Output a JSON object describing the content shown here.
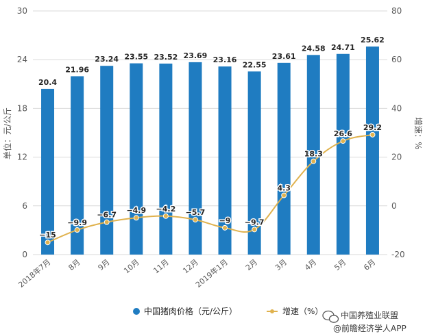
{
  "chart_data": {
    "type": "bar+line",
    "categories": [
      "2018年7月",
      "8月",
      "9月",
      "10月",
      "11月",
      "12月",
      "2019年1月",
      "2月",
      "3月",
      "4月",
      "5月",
      "6月"
    ],
    "series": [
      {
        "name": "中国猪肉价格（元/公斤）",
        "type": "bar",
        "axis": "left",
        "color": "#1f7cc1",
        "values": [
          20.4,
          21.96,
          23.24,
          23.55,
          23.52,
          23.69,
          23.16,
          22.55,
          23.61,
          24.58,
          24.71,
          25.62
        ],
        "labels": [
          "20.4",
          "21.96",
          "23.24",
          "23.55",
          "23.52",
          "23.69",
          "23.16",
          "22.55",
          "23.61",
          "24.58",
          "24.71",
          "25.62"
        ]
      },
      {
        "name": "增速（%）",
        "type": "line",
        "axis": "right",
        "color": "#e0b24e",
        "values": [
          -15,
          -9.9,
          -6.7,
          -4.9,
          -4.2,
          -5.7,
          -9,
          -9.7,
          4.3,
          18.3,
          26.6,
          29.2
        ],
        "labels": [
          "−15",
          "−9.9",
          "−6.7",
          "−4.9",
          "−4.2",
          "−5.7",
          "−9",
          "−9.7",
          "4.3",
          "18.3",
          "26.6",
          "29.2"
        ]
      }
    ],
    "ylabel": "单位：元/公斤",
    "y2label": "增速：%",
    "ylim": [
      0,
      30
    ],
    "yticks": [
      "0",
      "6",
      "12",
      "18",
      "24",
      "30"
    ],
    "y2lim": [
      -20,
      80
    ],
    "y2ticks": [
      "-20",
      "0",
      "20",
      "40",
      "60",
      "80"
    ],
    "grid": true,
    "legend_position": "bottom"
  },
  "watermark": {
    "line1": "中国养殖业联盟",
    "line2": "@前瞻经济学人APP"
  }
}
